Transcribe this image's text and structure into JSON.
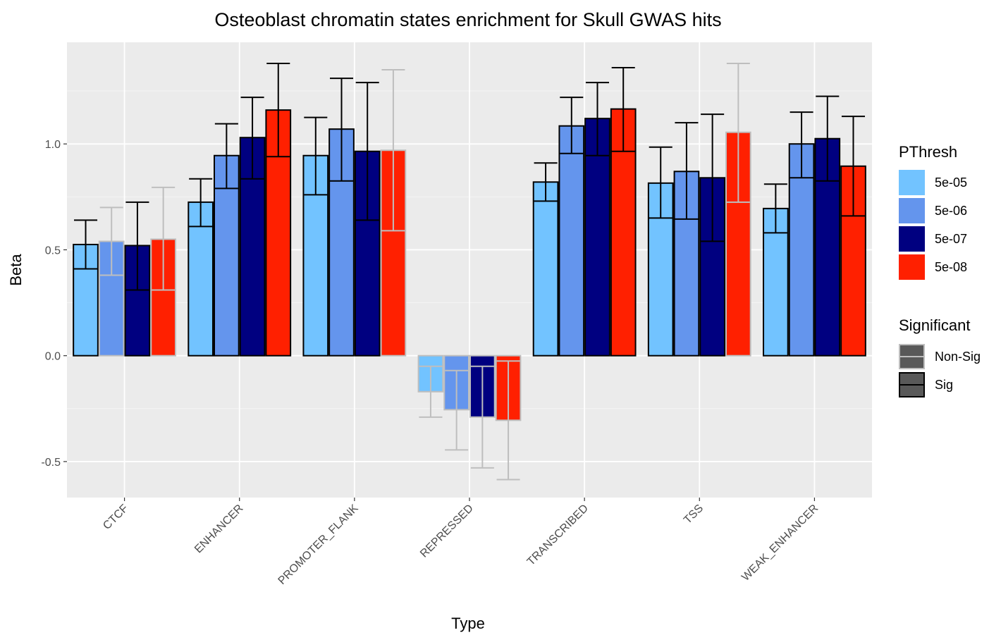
{
  "chart_data": {
    "type": "bar",
    "title": "Osteoblast chromatin states enrichment for Skull GWAS hits",
    "xlabel": "Type",
    "ylabel": "Beta",
    "ylim": [
      -0.67,
      1.48
    ],
    "yticks": [
      -0.5,
      0.0,
      0.5,
      1.0
    ],
    "ytick_labels": [
      "-0.5",
      "0.0",
      "0.5",
      "1.0"
    ],
    "grid": true,
    "categories": [
      "CTCF",
      "ENHANCER",
      "PROMOTER_FLANK",
      "REPRESSED",
      "TRANSCRIBED",
      "TSS",
      "WEAK_ENHANCER"
    ],
    "series": [
      {
        "name": "5e-05",
        "color": "#72C3FF",
        "values": [
          0.525,
          0.725,
          0.945,
          -0.17,
          0.82,
          0.815,
          0.695
        ],
        "error_low": [
          0.41,
          0.61,
          0.76,
          -0.29,
          0.73,
          0.65,
          0.58
        ],
        "error_high": [
          0.64,
          0.835,
          1.125,
          -0.05,
          0.91,
          0.985,
          0.81
        ],
        "significant": [
          "Sig",
          "Sig",
          "Sig",
          "Non-Sig",
          "Sig",
          "Sig",
          "Sig"
        ]
      },
      {
        "name": "5e-06",
        "color": "#6495ED",
        "values": [
          0.54,
          0.945,
          1.07,
          -0.255,
          1.085,
          0.87,
          1.0
        ],
        "error_low": [
          0.38,
          0.79,
          0.825,
          -0.445,
          0.955,
          0.645,
          0.84
        ],
        "error_high": [
          0.7,
          1.095,
          1.31,
          -0.07,
          1.22,
          1.1,
          1.15
        ],
        "significant": [
          "Non-Sig",
          "Sig",
          "Sig",
          "Non-Sig",
          "Sig",
          "Sig",
          "Sig"
        ]
      },
      {
        "name": "5e-07",
        "color": "#000080",
        "values": [
          0.52,
          1.03,
          0.965,
          -0.29,
          1.12,
          0.84,
          1.025
        ],
        "error_low": [
          0.31,
          0.835,
          0.64,
          -0.53,
          0.945,
          0.54,
          0.825
        ],
        "error_high": [
          0.725,
          1.22,
          1.29,
          -0.05,
          1.29,
          1.14,
          1.225
        ],
        "significant": [
          "Sig",
          "Sig",
          "Sig",
          "Non-Sig",
          "Sig",
          "Sig",
          "Sig"
        ]
      },
      {
        "name": "5e-08",
        "color": "#FF2000",
        "values": [
          0.55,
          1.16,
          0.97,
          -0.305,
          1.165,
          1.055,
          0.895
        ],
        "error_low": [
          0.31,
          0.94,
          0.59,
          -0.585,
          0.965,
          0.725,
          0.66
        ],
        "error_high": [
          0.795,
          1.38,
          1.35,
          -0.025,
          1.36,
          1.38,
          1.13
        ],
        "significant": [
          "Non-Sig",
          "Sig",
          "Non-Sig",
          "Non-Sig",
          "Sig",
          "Non-Sig",
          "Sig"
        ]
      }
    ],
    "legends": [
      {
        "title": "PThresh",
        "entries": [
          {
            "label": "5e-05",
            "color": "#72C3FF"
          },
          {
            "label": "5e-06",
            "color": "#6495ED"
          },
          {
            "label": "5e-07",
            "color": "#000080"
          },
          {
            "label": "5e-08",
            "color": "#FF2000"
          }
        ]
      },
      {
        "title": "Significant",
        "entries": [
          {
            "label": "Non-Sig",
            "outline": "#BEBEBE"
          },
          {
            "label": "Sig",
            "outline": "#000000"
          }
        ]
      }
    ],
    "legend_placement": "right",
    "colors": {
      "panel_background": "#EBEBEB",
      "grid_major": "#FFFFFF",
      "non_sig_outline": "#BEBEBE",
      "sig_outline": "#000000",
      "tick_text": "#4D4D4D"
    }
  }
}
